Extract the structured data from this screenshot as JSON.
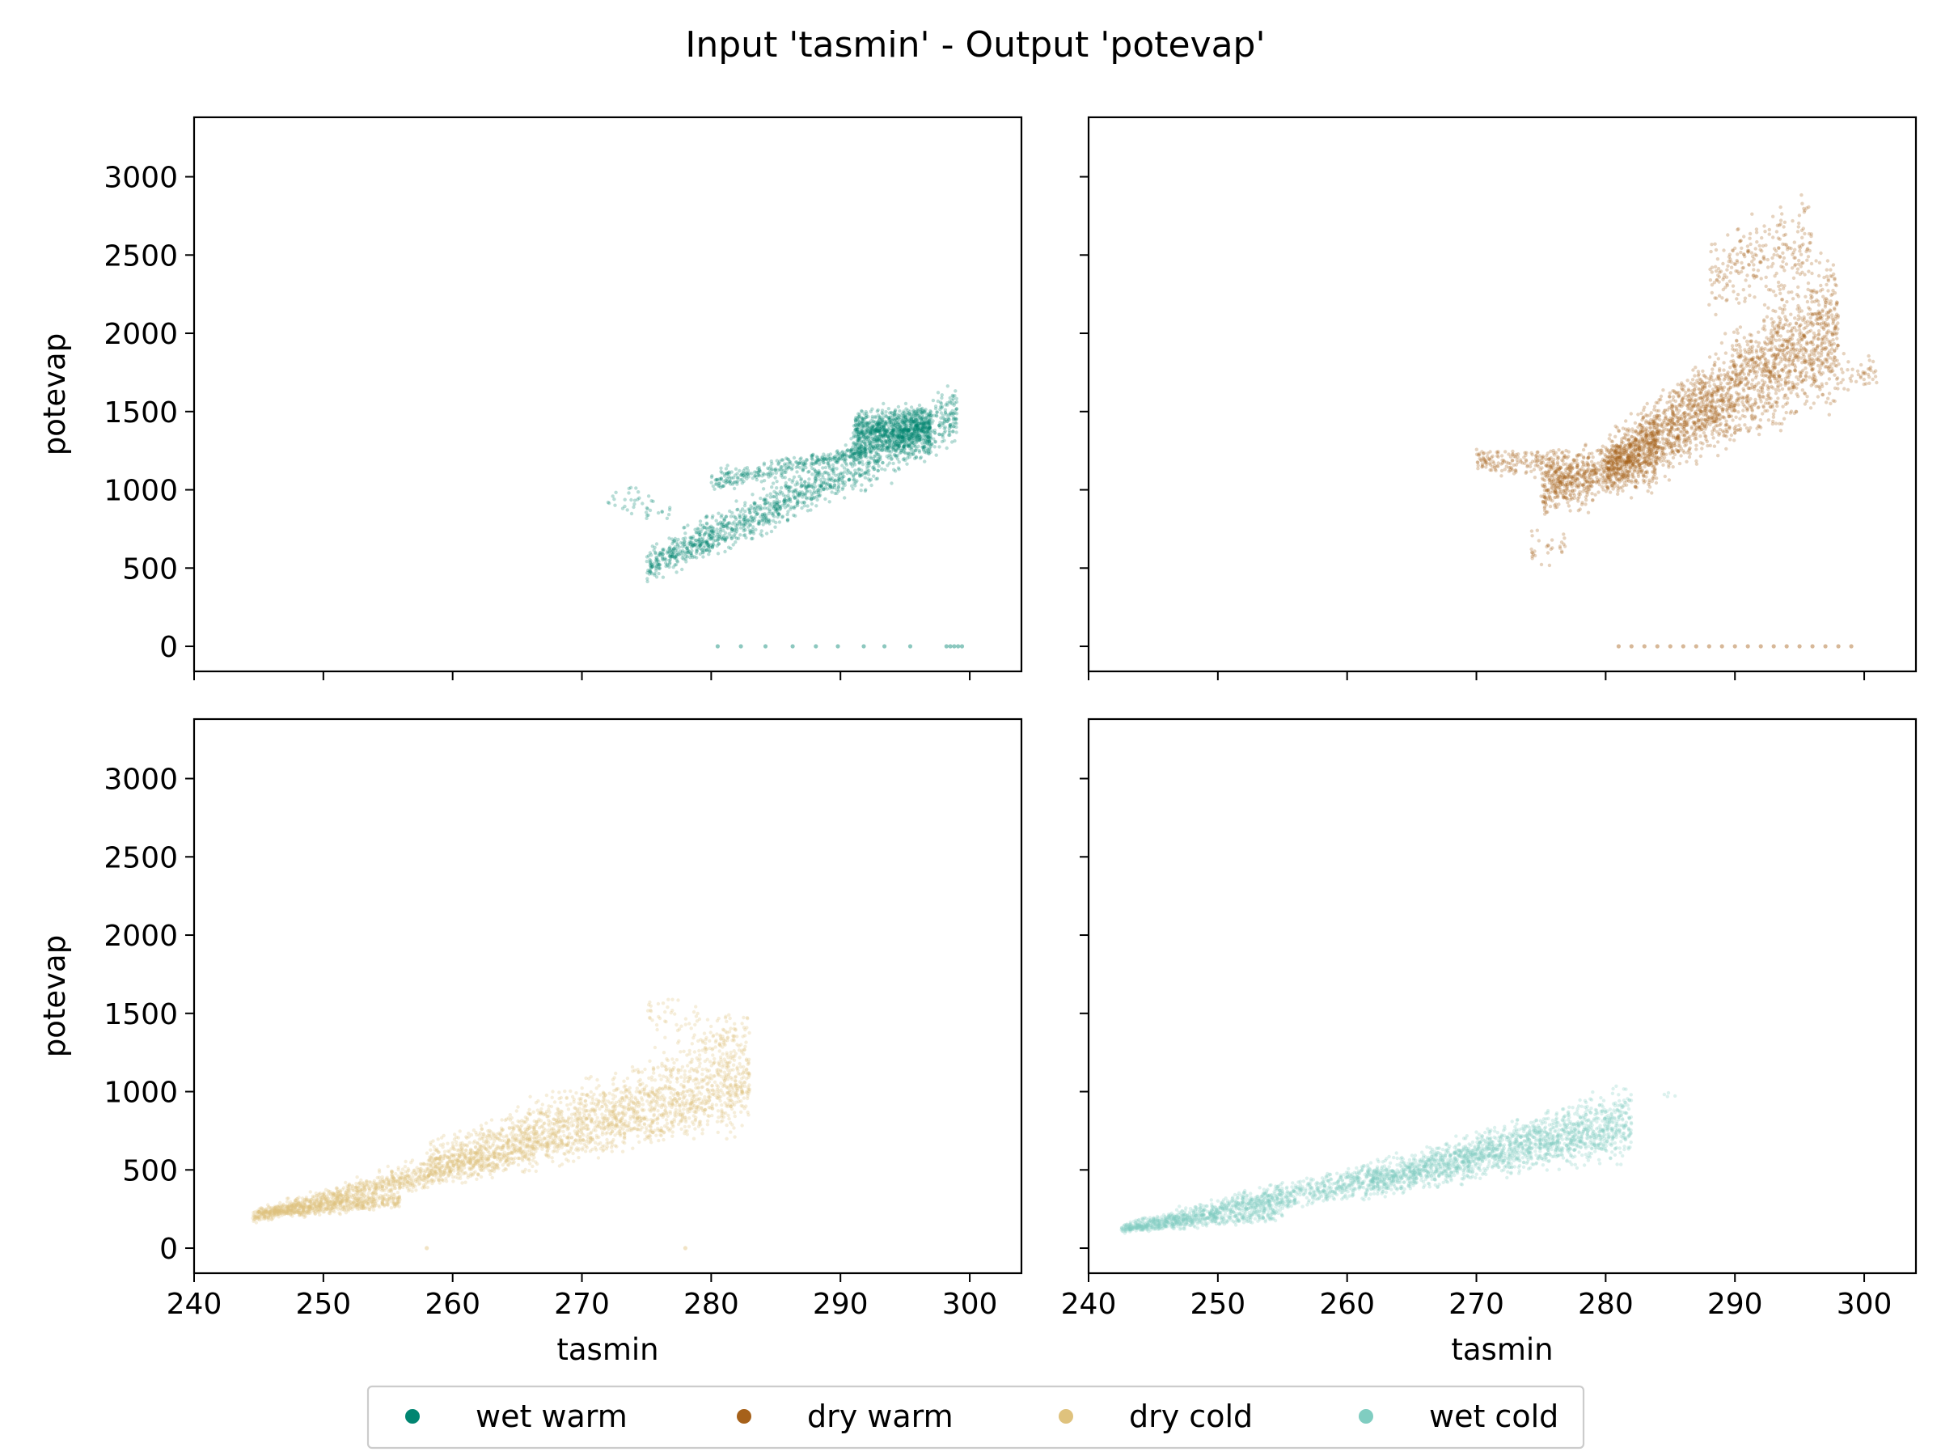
{
  "figure": {
    "title": "Input 'tasmin' - Output 'potevap'"
  },
  "chart_data": [
    {
      "type": "scatter",
      "panel": "top-left",
      "series_name": "wet warm",
      "color": "#018571",
      "xlabel": "",
      "ylabel": "potevap",
      "xlim": [
        240,
        304
      ],
      "ylim": [
        -160,
        3380
      ],
      "xticks": [
        240,
        250,
        260,
        270,
        280,
        290,
        300
      ],
      "yticks": [
        0,
        500,
        1000,
        1500,
        2000,
        2500,
        3000
      ],
      "show_xtick_labels": false,
      "show_ytick_labels": true,
      "point_clouds": [
        {
          "x_range": [
            275,
            299
          ],
          "y_at_x_start": [
            350,
            650
          ],
          "y_at_x_end": [
            1200,
            1750
          ],
          "n": 1400
        },
        {
          "x_range": [
            291,
            297
          ],
          "y_at_x_start": [
            1150,
            1550
          ],
          "y_at_x_end": [
            1200,
            1600
          ],
          "n": 900
        },
        {
          "x_range": [
            280,
            292
          ],
          "y_at_x_start": [
            950,
            1150
          ],
          "y_at_x_end": [
            1200,
            1300
          ],
          "n": 300
        },
        {
          "x_range": [
            272,
            277
          ],
          "y_at_x_start": [
            800,
            1100
          ],
          "y_at_x_end": [
            700,
            1000
          ],
          "n": 40
        }
      ],
      "zero_points_x": [
        280.5,
        282.3,
        284.2,
        286.3,
        288.1,
        289.8,
        291.8,
        293.4,
        295.4,
        298.2,
        298.5,
        298.8,
        299.1,
        299.4
      ]
    },
    {
      "type": "scatter",
      "panel": "top-right",
      "series_name": "dry warm",
      "color": "#a6611a",
      "xlabel": "",
      "ylabel": "",
      "xlim": [
        240,
        304
      ],
      "ylim": [
        -160,
        3380
      ],
      "xticks": [
        240,
        250,
        260,
        270,
        280,
        290,
        300
      ],
      "yticks": [
        0,
        500,
        1000,
        1500,
        2000,
        2500,
        3000
      ],
      "show_xtick_labels": false,
      "show_ytick_labels": false,
      "point_clouds": [
        {
          "x_range": [
            280,
            298
          ],
          "y_at_x_start": [
            900,
            1400
          ],
          "y_at_x_end": [
            1400,
            2700
          ],
          "n": 2200
        },
        {
          "x_range": [
            275,
            284
          ],
          "y_at_x_start": [
            800,
            1200
          ],
          "y_at_x_end": [
            900,
            1500
          ],
          "n": 700
        },
        {
          "x_range": [
            270,
            278
          ],
          "y_at_x_start": [
            1100,
            1300
          ],
          "y_at_x_end": [
            1000,
            1300
          ],
          "n": 220
        },
        {
          "x_range": [
            288,
            296
          ],
          "y_at_x_start": [
            2000,
            2700
          ],
          "y_at_x_end": [
            2100,
            3100
          ],
          "n": 250
        },
        {
          "x_range": [
            274,
            277
          ],
          "y_at_x_start": [
            450,
            800
          ],
          "y_at_x_end": [
            450,
            800
          ],
          "n": 30
        },
        {
          "x_range": [
            296,
            301
          ],
          "y_at_x_start": [
            1500,
            2000
          ],
          "y_at_x_end": [
            1600,
            1900
          ],
          "n": 60
        }
      ],
      "zero_points_x": [
        281,
        282,
        283,
        284,
        285,
        286,
        287,
        288,
        289,
        290,
        291,
        292,
        293,
        294,
        295,
        296,
        297,
        298,
        299
      ]
    },
    {
      "type": "scatter",
      "panel": "bottom-left",
      "series_name": "dry cold",
      "color": "#dfc27d",
      "xlabel": "tasmin",
      "ylabel": "potevap",
      "xlim": [
        240,
        304
      ],
      "ylim": [
        -160,
        3380
      ],
      "xticks": [
        240,
        250,
        260,
        270,
        280,
        290,
        300
      ],
      "yticks": [
        0,
        500,
        1000,
        1500,
        2000,
        2500,
        3000
      ],
      "show_xtick_labels": true,
      "show_ytick_labels": true,
      "point_clouds": [
        {
          "x_range": [
            244.5,
            283
          ],
          "y_at_x_start": [
            150,
            250
          ],
          "y_at_x_end": [
            700,
            1300
          ],
          "n": 2200
        },
        {
          "x_range": [
            258,
            283
          ],
          "y_at_x_start": [
            400,
            700
          ],
          "y_at_x_end": [
            900,
            1600
          ],
          "n": 900
        },
        {
          "x_range": [
            245,
            256
          ],
          "y_at_x_start": [
            170,
            280
          ],
          "y_at_x_end": [
            230,
            380
          ],
          "n": 500
        },
        {
          "x_range": [
            275,
            282
          ],
          "y_at_x_start": [
            1300,
            1700
          ],
          "y_at_x_end": [
            1200,
            1550
          ],
          "n": 80
        }
      ],
      "zero_points_x": [
        258,
        278
      ]
    },
    {
      "type": "scatter",
      "panel": "bottom-right",
      "series_name": "wet cold",
      "color": "#80cdc1",
      "xlabel": "tasmin",
      "ylabel": "",
      "xlim": [
        240,
        304
      ],
      "ylim": [
        -160,
        3380
      ],
      "xticks": [
        240,
        250,
        260,
        270,
        280,
        290,
        300
      ],
      "yticks": [
        0,
        500,
        1000,
        1500,
        2000,
        2500,
        3000
      ],
      "show_xtick_labels": true,
      "show_ytick_labels": false,
      "point_clouds": [
        {
          "x_range": [
            242.5,
            282
          ],
          "y_at_x_start": [
            80,
            170
          ],
          "y_at_x_end": [
            500,
            1050
          ],
          "n": 2200
        },
        {
          "x_range": [
            262,
            282
          ],
          "y_at_x_start": [
            300,
            550
          ],
          "y_at_x_end": [
            600,
            1150
          ],
          "n": 800
        },
        {
          "x_range": [
            243,
            255
          ],
          "y_at_x_start": [
            90,
            160
          ],
          "y_at_x_end": [
            150,
            300
          ],
          "n": 350
        },
        {
          "x_range": [
            284.5,
            285.5
          ],
          "y_at_x_start": [
            940,
            1000
          ],
          "y_at_x_end": [
            940,
            1000
          ],
          "n": 4
        }
      ],
      "zero_points_x": []
    }
  ],
  "legend": {
    "placement": "bottom-center",
    "items": [
      {
        "label": "wet warm",
        "color": "#018571"
      },
      {
        "label": "dry warm",
        "color": "#a6611a"
      },
      {
        "label": "dry cold",
        "color": "#dfc27d"
      },
      {
        "label": "wet cold",
        "color": "#80cdc1"
      }
    ]
  }
}
